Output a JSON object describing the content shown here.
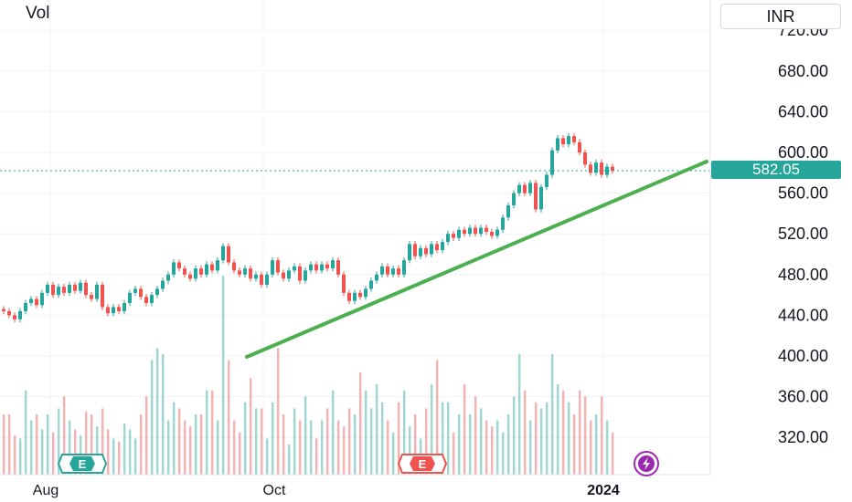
{
  "header": {
    "vol_label": "Vol",
    "currency_label": "INR"
  },
  "last_price_label": "582.05",
  "events": [
    {
      "letter": "E",
      "position": "Aug"
    },
    {
      "letter": "E",
      "position": "Nov"
    },
    {
      "letter": "",
      "icon": "lightning-icon",
      "position": "Jan"
    }
  ],
  "colors": {
    "up": "#26a69a",
    "down": "#ef5350",
    "trendline": "#4caf50",
    "event_e": "#26a69a",
    "event_e2": "#ef5350",
    "event_bolt": "#9c27b0"
  },
  "chart_data": {
    "type": "candlestick",
    "x_tick_labels": [
      "Aug",
      "Oct",
      "2024"
    ],
    "y_tick_labels": [
      "720.00",
      "680.00",
      "640.00",
      "600.00",
      "560.00",
      "520.00",
      "480.00",
      "440.00",
      "400.00",
      "360.00",
      "320.00"
    ],
    "ylim": [
      300,
      735
    ],
    "last_price": 582.05,
    "grid": true,
    "candles": [
      {
        "o": 446,
        "c": 444
      },
      {
        "o": 444,
        "c": 440
      },
      {
        "o": 440,
        "c": 436
      },
      {
        "o": 436,
        "c": 444
      },
      {
        "o": 444,
        "c": 452
      },
      {
        "o": 452,
        "c": 456
      },
      {
        "o": 456,
        "c": 450
      },
      {
        "o": 450,
        "c": 462
      },
      {
        "o": 462,
        "c": 470
      },
      {
        "o": 470,
        "c": 460
      },
      {
        "o": 460,
        "c": 468
      },
      {
        "o": 468,
        "c": 462
      },
      {
        "o": 462,
        "c": 470
      },
      {
        "o": 470,
        "c": 464
      },
      {
        "o": 464,
        "c": 472
      },
      {
        "o": 472,
        "c": 460
      },
      {
        "o": 460,
        "c": 456
      },
      {
        "o": 456,
        "c": 470
      },
      {
        "o": 470,
        "c": 448
      },
      {
        "o": 448,
        "c": 442
      },
      {
        "o": 442,
        "c": 448
      },
      {
        "o": 448,
        "c": 444
      },
      {
        "o": 444,
        "c": 452
      },
      {
        "o": 452,
        "c": 462
      },
      {
        "o": 462,
        "c": 466
      },
      {
        "o": 466,
        "c": 458
      },
      {
        "o": 458,
        "c": 452
      },
      {
        "o": 452,
        "c": 460
      },
      {
        "o": 460,
        "c": 466
      },
      {
        "o": 466,
        "c": 474
      },
      {
        "o": 474,
        "c": 480
      },
      {
        "o": 480,
        "c": 492
      },
      {
        "o": 492,
        "c": 486
      },
      {
        "o": 486,
        "c": 480
      },
      {
        "o": 480,
        "c": 476
      },
      {
        "o": 476,
        "c": 486
      },
      {
        "o": 486,
        "c": 480
      },
      {
        "o": 480,
        "c": 490
      },
      {
        "o": 490,
        "c": 484
      },
      {
        "o": 484,
        "c": 494
      },
      {
        "o": 494,
        "c": 508
      },
      {
        "o": 508,
        "c": 492
      },
      {
        "o": 492,
        "c": 484
      },
      {
        "o": 484,
        "c": 480
      },
      {
        "o": 480,
        "c": 486
      },
      {
        "o": 486,
        "c": 476
      },
      {
        "o": 476,
        "c": 480
      },
      {
        "o": 480,
        "c": 470
      },
      {
        "o": 470,
        "c": 480
      },
      {
        "o": 480,
        "c": 494
      },
      {
        "o": 494,
        "c": 482
      },
      {
        "o": 482,
        "c": 476
      },
      {
        "o": 476,
        "c": 484
      },
      {
        "o": 484,
        "c": 488
      },
      {
        "o": 488,
        "c": 474
      },
      {
        "o": 474,
        "c": 484
      },
      {
        "o": 484,
        "c": 490
      },
      {
        "o": 490,
        "c": 484
      },
      {
        "o": 484,
        "c": 490
      },
      {
        "o": 490,
        "c": 486
      },
      {
        "o": 486,
        "c": 494
      },
      {
        "o": 494,
        "c": 480
      },
      {
        "o": 480,
        "c": 462
      },
      {
        "o": 462,
        "c": 454
      },
      {
        "o": 454,
        "c": 462
      },
      {
        "o": 462,
        "c": 458
      },
      {
        "o": 458,
        "c": 466
      },
      {
        "o": 466,
        "c": 474
      },
      {
        "o": 474,
        "c": 480
      },
      {
        "o": 480,
        "c": 488
      },
      {
        "o": 488,
        "c": 480
      },
      {
        "o": 480,
        "c": 486
      },
      {
        "o": 486,
        "c": 480
      },
      {
        "o": 480,
        "c": 494
      },
      {
        "o": 494,
        "c": 510
      },
      {
        "o": 510,
        "c": 498
      },
      {
        "o": 498,
        "c": 506
      },
      {
        "o": 506,
        "c": 500
      },
      {
        "o": 500,
        "c": 510
      },
      {
        "o": 510,
        "c": 504
      },
      {
        "o": 504,
        "c": 512
      },
      {
        "o": 512,
        "c": 520
      },
      {
        "o": 520,
        "c": 516
      },
      {
        "o": 516,
        "c": 524
      },
      {
        "o": 524,
        "c": 520
      },
      {
        "o": 520,
        "c": 526
      },
      {
        "o": 526,
        "c": 520
      },
      {
        "o": 520,
        "c": 526
      },
      {
        "o": 526,
        "c": 522
      },
      {
        "o": 522,
        "c": 518
      },
      {
        "o": 518,
        "c": 524
      },
      {
        "o": 524,
        "c": 536
      },
      {
        "o": 536,
        "c": 548
      },
      {
        "o": 548,
        "c": 560
      },
      {
        "o": 560,
        "c": 568
      },
      {
        "o": 568,
        "c": 560
      },
      {
        "o": 560,
        "c": 570
      },
      {
        "o": 570,
        "c": 544
      },
      {
        "o": 544,
        "c": 566
      },
      {
        "o": 566,
        "c": 578
      },
      {
        "o": 578,
        "c": 602
      },
      {
        "o": 602,
        "c": 614
      },
      {
        "o": 614,
        "c": 608
      },
      {
        "o": 608,
        "c": 616
      },
      {
        "o": 616,
        "c": 610
      },
      {
        "o": 610,
        "c": 600
      },
      {
        "o": 600,
        "c": 588
      },
      {
        "o": 588,
        "c": 580
      },
      {
        "o": 580,
        "c": 590
      },
      {
        "o": 590,
        "c": 578
      },
      {
        "o": 578,
        "c": 586
      },
      {
        "o": 586,
        "c": 582
      }
    ],
    "volume": [
      20,
      20,
      13,
      12,
      28,
      18,
      20,
      15,
      20,
      14,
      22,
      26,
      18,
      15,
      13,
      21,
      20,
      16,
      22,
      15,
      12,
      11,
      17,
      15,
      12,
      20,
      26,
      38,
      42,
      40,
      18,
      24,
      22,
      18,
      16,
      20,
      20,
      28,
      28,
      18,
      66,
      38,
      18,
      14,
      24,
      32,
      22,
      22,
      12,
      24,
      42,
      20,
      10,
      22,
      18,
      26,
      18,
      12,
      18,
      22,
      28,
      18,
      16,
      22,
      20,
      34,
      28,
      22,
      30,
      24,
      18,
      14,
      24,
      28,
      16,
      20,
      12,
      22,
      30,
      38,
      24,
      24,
      14,
      20,
      30,
      20,
      26,
      22,
      18,
      16,
      18,
      14,
      20,
      26,
      40,
      28,
      18,
      24,
      22,
      24,
      40,
      30,
      28,
      24,
      20,
      28,
      26,
      18,
      20,
      26,
      18,
      14
    ]
  }
}
